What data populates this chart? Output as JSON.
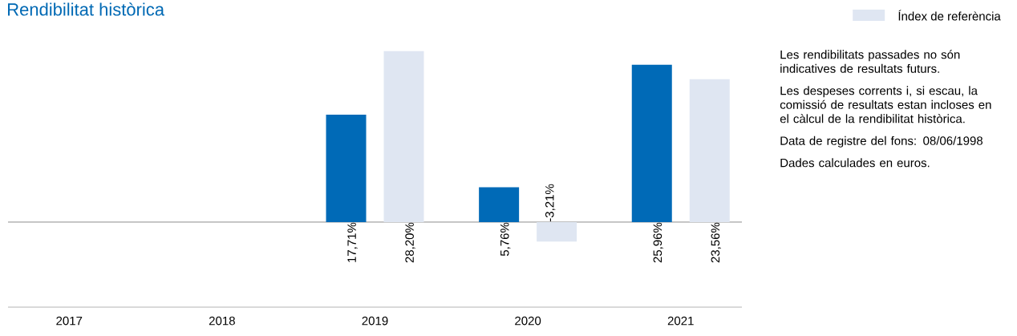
{
  "chart_data": {
    "type": "bar",
    "title": "Rendibilitat històrica",
    "categories": [
      "2017",
      "2018",
      "2019",
      "2020",
      "2021"
    ],
    "series": [
      {
        "color": "#006ab7",
        "values": [
          null,
          null,
          17.71,
          5.76,
          25.96
        ],
        "value_labels": [
          null,
          null,
          "17,71%",
          "5,76%",
          "25,96%"
        ]
      },
      {
        "name": "Índex de referència",
        "color": "#dfe6f2",
        "values": [
          null,
          null,
          28.2,
          -3.21,
          23.56
        ],
        "value_labels": [
          null,
          null,
          "28,20%",
          "-3,21%",
          "23,56%"
        ]
      }
    ],
    "legend": "top right",
    "annotations": [
      "Les rendibilitats passades no són indicatives de resultats futurs.",
      "Les despeses corrents i, si escau, la comissió de resultats estan incloses en el càlcul de la rendibilitat històrica.",
      "Data de registre del fons: 08/06/1998",
      "Dades calculades en euros."
    ]
  }
}
